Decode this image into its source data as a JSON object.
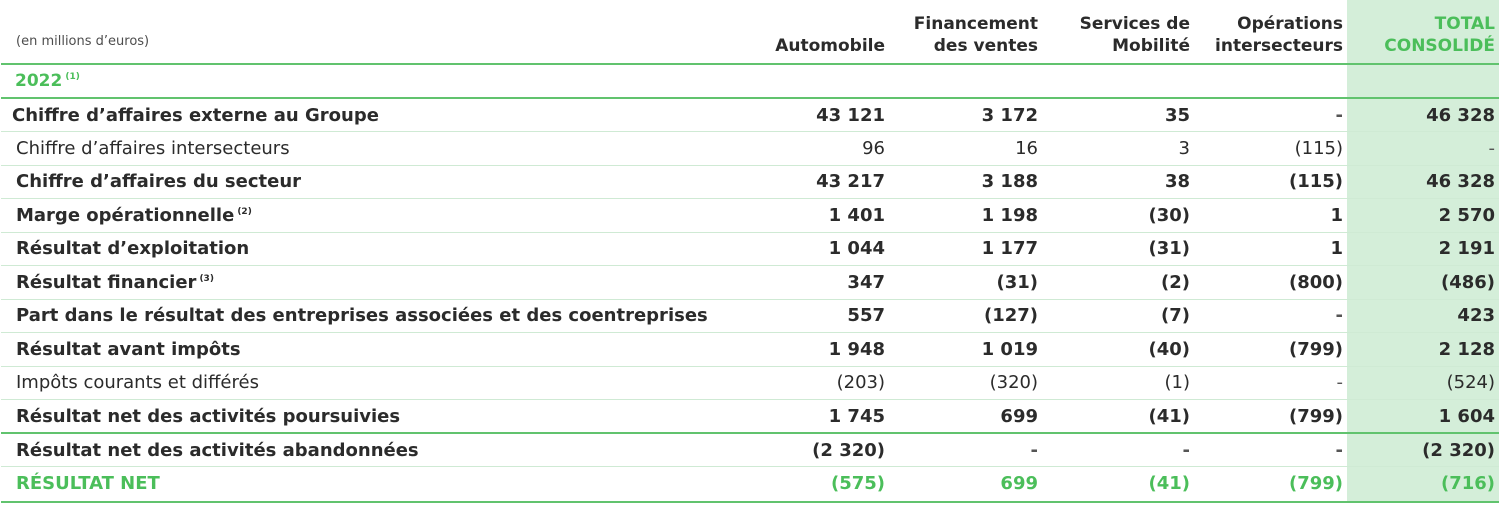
{
  "header": {
    "unit": "(en millions d’euros)",
    "columns": [
      {
        "line1": "",
        "line2": "Automobile"
      },
      {
        "line1": "Financement",
        "line2": "des ventes"
      },
      {
        "line1": "Services de",
        "line2": "Mobilité"
      },
      {
        "line1": "Opérations",
        "line2": "intersecteurs"
      },
      {
        "line1": "TOTAL",
        "line2": "CONSOLIDÉ"
      }
    ]
  },
  "year": {
    "label": "2022",
    "note": "(1)"
  },
  "rows": [
    {
      "label": "Chiffre d’affaires externe au Groupe",
      "note": "",
      "values": [
        "43 121",
        "3 172",
        "35",
        "-",
        "46 328"
      ]
    },
    {
      "label": "Chiffre d’affaires intersecteurs",
      "note": "",
      "values": [
        "96",
        "16",
        "3",
        "(115)",
        "-"
      ]
    },
    {
      "label": "Chiffre d’affaires du secteur",
      "note": "",
      "values": [
        "43 217",
        "3 188",
        "38",
        "(115)",
        "46 328"
      ]
    },
    {
      "label": "Marge opérationnelle",
      "note": "(2)",
      "values": [
        "1 401",
        "1 198",
        "(30)",
        "1",
        "2 570"
      ]
    },
    {
      "label": "Résultat d’exploitation",
      "note": "",
      "values": [
        "1 044",
        "1 177",
        "(31)",
        "1",
        "2 191"
      ]
    },
    {
      "label": "Résultat financier",
      "note": "(3)",
      "values": [
        "347",
        "(31)",
        "(2)",
        "(800)",
        "(486)"
      ]
    },
    {
      "label": "Part dans le résultat des entreprises associées et des coentreprises",
      "note": "",
      "values": [
        "557",
        "(127)",
        "(7)",
        "-",
        "423"
      ]
    },
    {
      "label": "Résultat avant impôts",
      "note": "",
      "values": [
        "1 948",
        "1 019",
        "(40)",
        "(799)",
        "2 128"
      ]
    },
    {
      "label": "Impôts courants et différés",
      "note": "",
      "values": [
        "(203)",
        "(320)",
        "(1)",
        "-",
        "(524)"
      ]
    },
    {
      "label": "Résultat net des activités poursuivies",
      "note": "",
      "values": [
        "1 745",
        "699",
        "(41)",
        "(799)",
        "1 604"
      ]
    },
    {
      "label": "Résultat net des activités abandonnées",
      "note": "",
      "values": [
        "(2 320)",
        "-",
        "-",
        "-",
        "(2 320)"
      ]
    },
    {
      "label": "RÉSULTAT NET",
      "note": "",
      "values": [
        "(575)",
        "699",
        "(41)",
        "(799)",
        "(716)"
      ]
    }
  ]
}
